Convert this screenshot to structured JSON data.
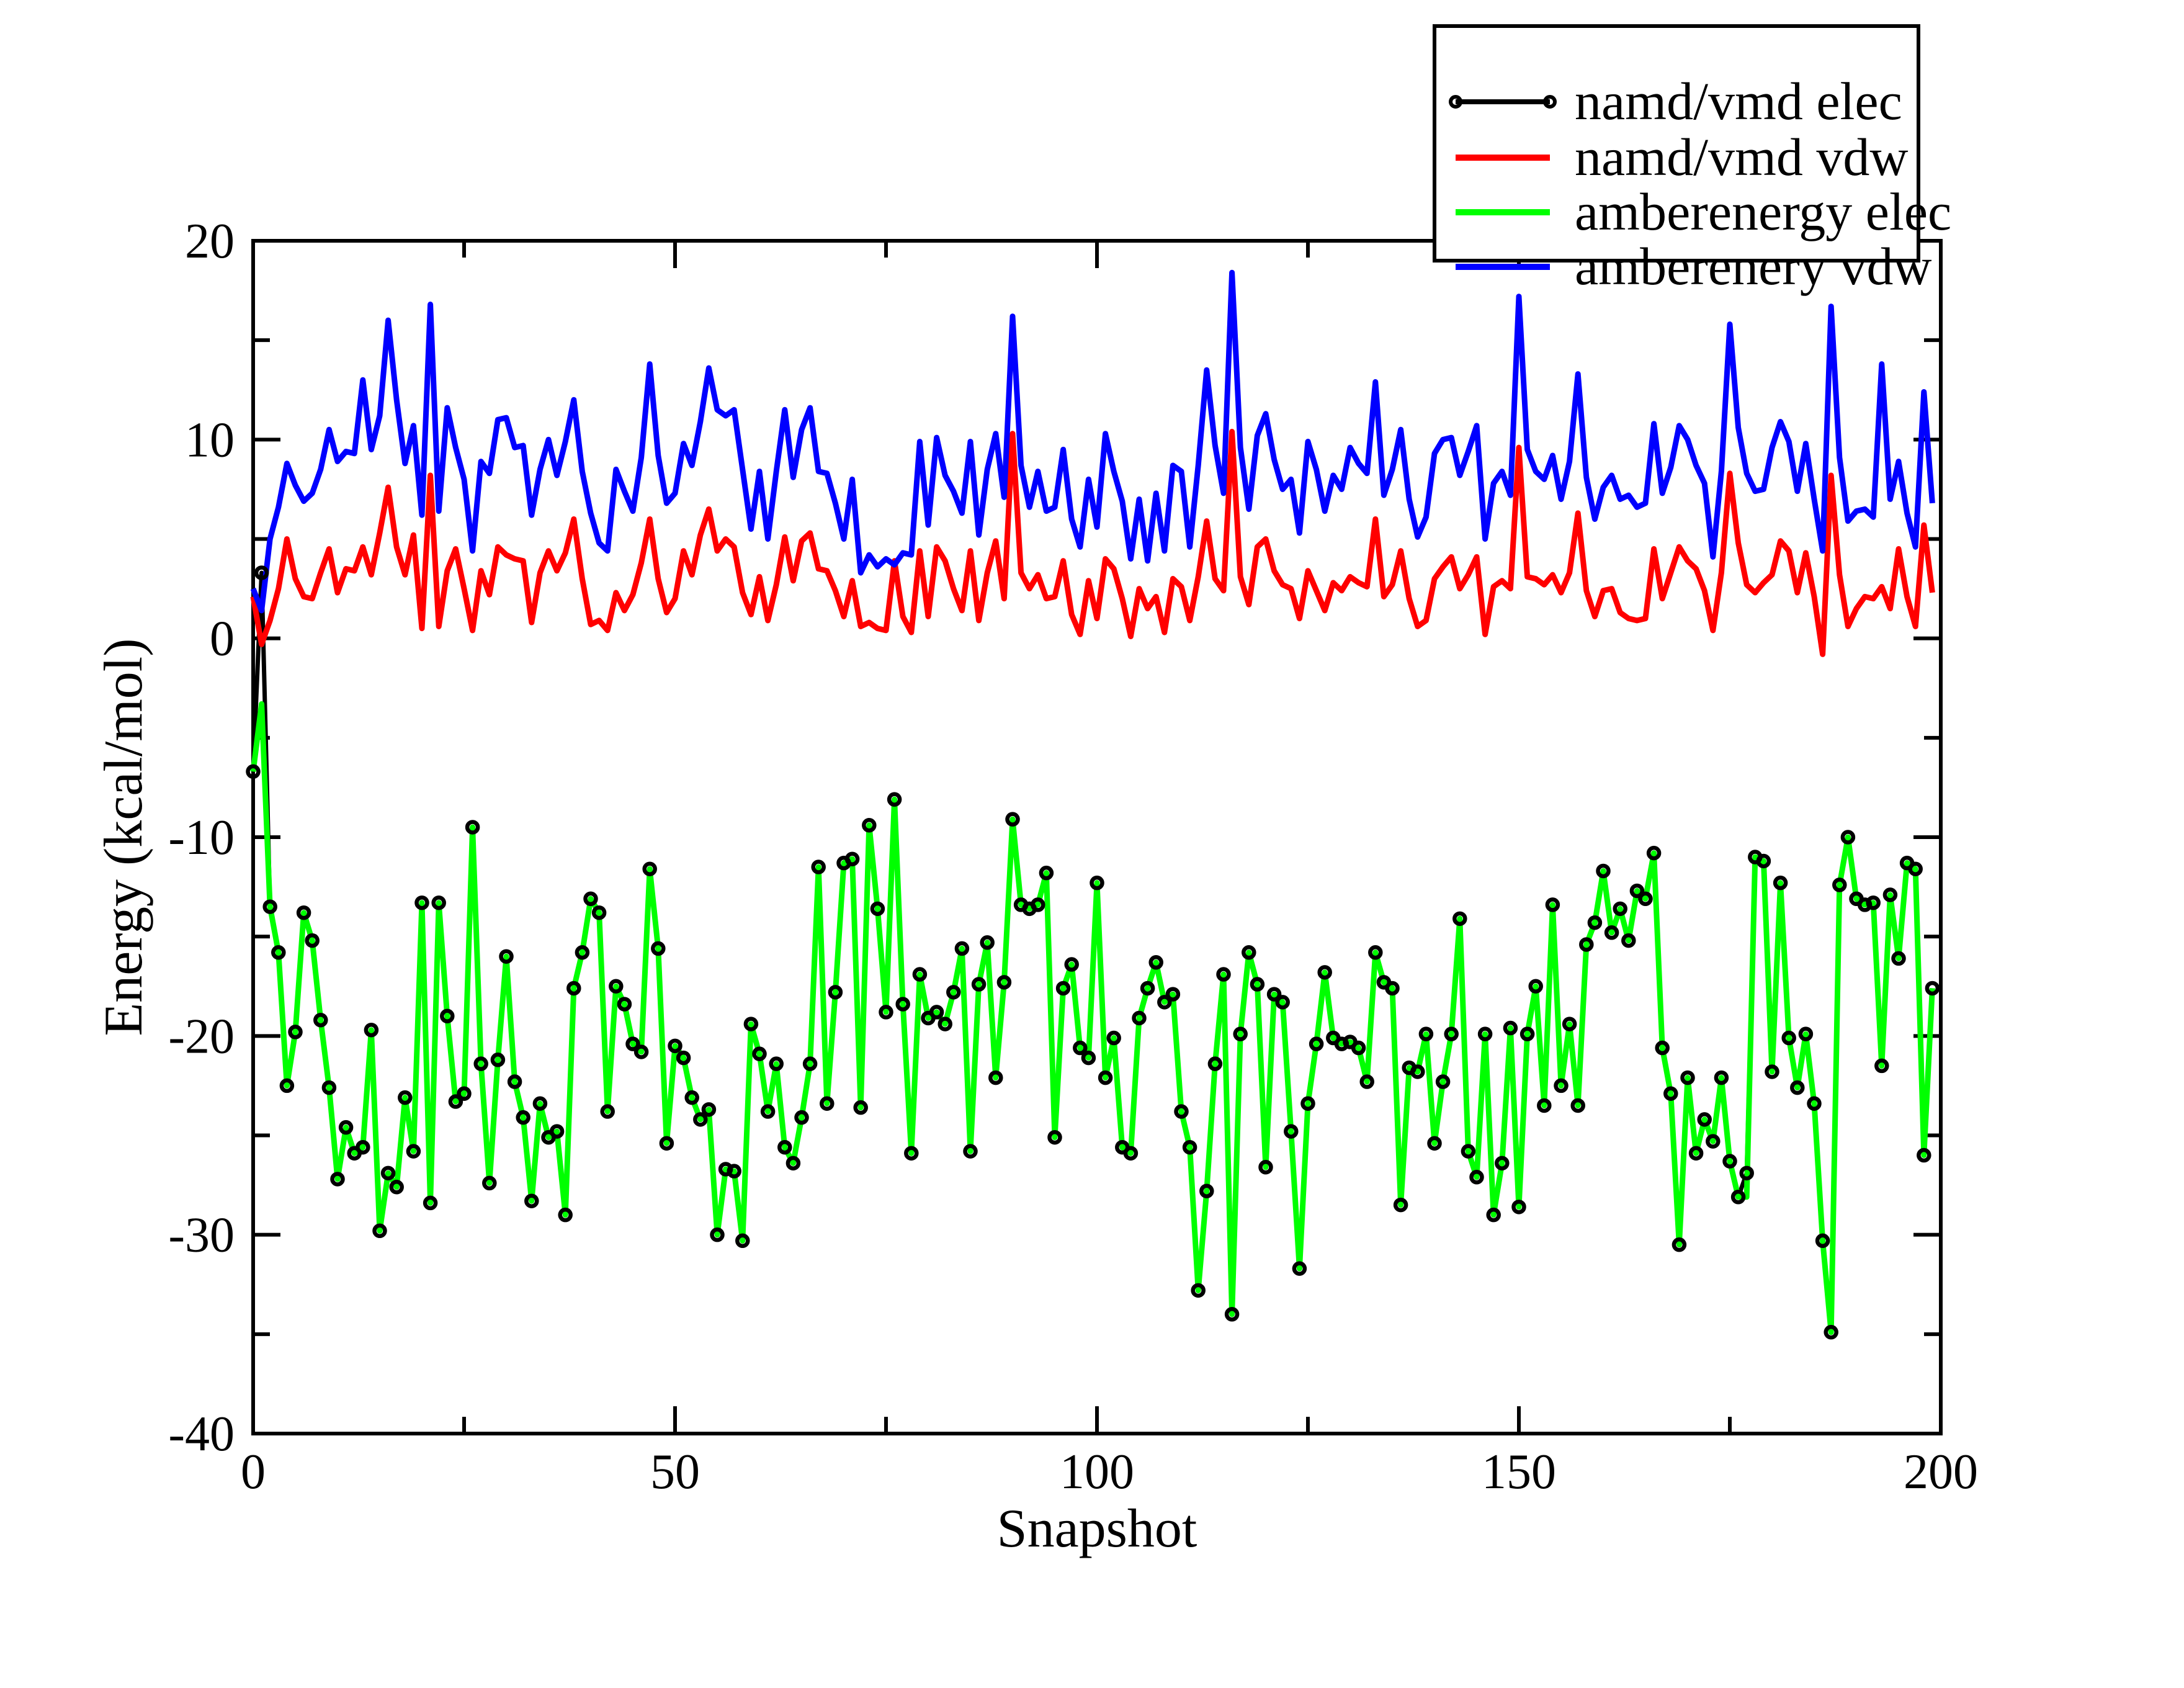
{
  "chart_data": {
    "type": "line",
    "title": "",
    "xlabel": "Snapshot",
    "ylabel": "Energy (kcal/mol)",
    "xlim": [
      0,
      200
    ],
    "ylim": [
      -40,
      20
    ],
    "x_step": 1,
    "grid": false,
    "legend_position": "top-right",
    "x_ticks_major": [
      0,
      50,
      100,
      150,
      200
    ],
    "x_ticks_minor": [
      25,
      75,
      125,
      175
    ],
    "y_ticks_major": [
      -40,
      -30,
      -20,
      -10,
      0,
      10,
      20
    ],
    "y_ticks_minor": [
      -35,
      -25,
      -15,
      -5,
      5,
      15
    ],
    "x_tick_labels": [
      "0",
      "50",
      "100",
      "150",
      "200"
    ],
    "y_tick_labels": [
      "-40",
      "-30",
      "-20",
      "-10",
      "0",
      "10",
      "20"
    ],
    "series": [
      {
        "name": "namd/vmd elec",
        "color": "#000000",
        "marker": "circle",
        "values": [
          -6.7,
          3.3,
          -13.5,
          -15.8,
          -22.5,
          -19.8,
          -13.8,
          -15.2,
          -19.2,
          -22.6,
          -27.2,
          -24.6,
          -25.9,
          -25.6,
          -19.7,
          -29.8,
          -26.9,
          -27.6,
          -23.1,
          -25.8,
          -13.3,
          -28.4,
          -13.3,
          -19.0,
          -23.3,
          -22.9,
          -9.5,
          -21.4,
          -27.4,
          -21.2,
          -16.0,
          -22.3,
          -24.1,
          -28.3,
          -23.4,
          -25.1,
          -24.8,
          -29.0,
          -17.6,
          -15.8,
          -13.1,
          -13.8,
          -23.8,
          -17.5,
          -18.4,
          -20.4,
          -20.8,
          -11.6,
          -15.6,
          -25.4,
          -20.5,
          -21.1,
          -23.1,
          -24.2,
          -23.7,
          -30.0,
          -26.7,
          -26.8,
          -30.3,
          -19.4,
          -20.9,
          -23.8,
          -21.4,
          -25.6,
          -26.4,
          -24.1,
          -21.4,
          -11.5,
          -23.4,
          -17.8,
          -11.3,
          -11.1,
          -23.6,
          -9.4,
          -13.6,
          -18.8,
          -8.1,
          -18.4,
          -25.9,
          -16.9,
          -19.1,
          -18.8,
          -19.4,
          -17.8,
          -15.6,
          -25.8,
          -17.4,
          -15.3,
          -22.1,
          -17.3,
          -9.1,
          -13.4,
          -13.6,
          -13.4,
          -11.8,
          -25.1,
          -17.6,
          -16.4,
          -20.6,
          -21.1,
          -12.3,
          -22.1,
          -20.1,
          -25.6,
          -25.9,
          -19.1,
          -17.6,
          -16.3,
          -18.3,
          -17.9,
          -23.8,
          -25.6,
          -32.8,
          -27.8,
          -21.4,
          -16.9,
          -34.0,
          -19.9,
          -15.8,
          -17.4,
          -26.6,
          -17.9,
          -18.3,
          -24.8,
          -31.7,
          -23.4,
          -20.4,
          -16.8,
          -20.1,
          -20.4,
          -20.3,
          -20.6,
          -22.3,
          -15.8,
          -17.3,
          -17.6,
          -28.5,
          -21.6,
          -21.8,
          -19.9,
          -25.4,
          -22.3,
          -19.9,
          -14.1,
          -25.8,
          -27.1,
          -19.9,
          -29.0,
          -26.4,
          -19.6,
          -28.6,
          -19.9,
          -17.5,
          -23.5,
          -13.4,
          -22.5,
          -19.4,
          -23.5,
          -15.4,
          -14.3,
          -11.7,
          -14.8,
          -13.6,
          -15.2,
          -12.7,
          -13.1,
          -10.8,
          -20.6,
          -22.9,
          -30.5,
          -22.1,
          -25.9,
          -24.2,
          -25.3,
          -22.1,
          -26.3,
          -28.1,
          -26.9,
          -11.0,
          -11.2,
          -21.8,
          -12.3,
          -20.1,
          -22.6,
          -19.9,
          -23.4,
          -30.3,
          -34.9,
          -12.4,
          -10.0,
          -13.1,
          -13.4,
          -13.3,
          -21.5,
          -12.9,
          -16.1,
          -11.3,
          -11.6,
          -26.0,
          -17.6
        ]
      },
      {
        "name": "namd/vmd vdw",
        "color": "#ff0000",
        "marker": null,
        "values": [
          2.1,
          -0.3,
          0.9,
          2.5,
          5.0,
          3.0,
          2.1,
          2.0,
          3.3,
          4.5,
          2.3,
          3.5,
          3.4,
          4.6,
          3.2,
          5.3,
          7.6,
          4.6,
          3.2,
          5.2,
          0.5,
          8.2,
          0.6,
          3.4,
          4.5,
          2.5,
          0.4,
          3.4,
          2.2,
          4.6,
          4.2,
          4.0,
          3.9,
          0.8,
          3.3,
          4.4,
          3.4,
          4.3,
          6.0,
          3.0,
          0.7,
          0.9,
          0.4,
          2.3,
          1.4,
          2.2,
          3.8,
          6.0,
          3.0,
          1.3,
          2.0,
          4.4,
          3.2,
          5.2,
          6.5,
          4.4,
          5.0,
          4.6,
          2.3,
          1.2,
          3.1,
          0.9,
          2.7,
          5.1,
          2.9,
          4.9,
          5.3,
          3.5,
          3.4,
          2.4,
          1.1,
          2.9,
          0.6,
          0.8,
          0.5,
          0.4,
          3.9,
          1.1,
          0.3,
          4.4,
          1.1,
          4.6,
          3.9,
          2.5,
          1.4,
          4.4,
          0.9,
          3.3,
          4.9,
          2.0,
          10.3,
          3.3,
          2.5,
          3.2,
          2.0,
          2.1,
          3.9,
          1.2,
          0.2,
          2.9,
          1.0,
          4.0,
          3.5,
          2.0,
          0.1,
          2.5,
          1.5,
          2.1,
          0.3,
          3.0,
          2.6,
          0.9,
          3.1,
          5.9,
          3.0,
          2.4,
          10.4,
          3.1,
          1.7,
          4.6,
          5.0,
          3.4,
          2.7,
          2.5,
          1.0,
          3.4,
          2.4,
          1.4,
          2.8,
          2.4,
          3.1,
          2.8,
          2.6,
          6.0,
          2.1,
          2.7,
          4.4,
          2.0,
          0.6,
          0.9,
          3.0,
          3.6,
          4.1,
          2.5,
          3.2,
          4.1,
          0.2,
          2.6,
          2.9,
          2.5,
          9.6,
          3.1,
          3.0,
          2.7,
          3.2,
          2.3,
          3.3,
          6.3,
          2.4,
          1.1,
          2.4,
          2.5,
          1.3,
          1.0,
          0.9,
          1.0,
          4.5,
          2.0,
          3.3,
          4.6,
          3.9,
          3.5,
          2.4,
          0.4,
          3.3,
          8.3,
          4.8,
          2.7,
          2.3,
          2.8,
          3.2,
          4.9,
          4.4,
          2.3,
          4.3,
          2.1,
          -0.8,
          8.2,
          3.2,
          0.6,
          1.5,
          2.1,
          2.0,
          2.6,
          1.5,
          4.5,
          2.1,
          0.6,
          5.7,
          2.3
        ]
      },
      {
        "name": "amberenergy elec",
        "color": "#00ff00",
        "marker": null,
        "values": [
          -6.7,
          -3.3,
          -13.5,
          -15.8,
          -22.5,
          -19.8,
          -13.8,
          -15.2,
          -19.2,
          -22.6,
          -27.2,
          -24.6,
          -25.9,
          -25.6,
          -19.7,
          -29.8,
          -26.9,
          -27.6,
          -23.1,
          -25.8,
          -13.3,
          -28.4,
          -13.3,
          -19.0,
          -23.3,
          -22.9,
          -9.5,
          -21.4,
          -27.4,
          -21.2,
          -16.0,
          -22.3,
          -24.1,
          -28.3,
          -23.4,
          -25.1,
          -24.8,
          -29.0,
          -17.6,
          -15.8,
          -13.1,
          -13.8,
          -23.8,
          -17.5,
          -18.4,
          -20.4,
          -20.8,
          -11.6,
          -15.6,
          -25.4,
          -20.5,
          -21.1,
          -23.1,
          -24.2,
          -23.7,
          -30.0,
          -26.7,
          -26.8,
          -30.3,
          -19.4,
          -20.9,
          -23.8,
          -21.4,
          -25.6,
          -26.4,
          -24.1,
          -21.4,
          -11.5,
          -23.4,
          -17.8,
          -11.3,
          -11.1,
          -23.6,
          -9.4,
          -13.6,
          -18.8,
          -8.1,
          -18.4,
          -25.9,
          -16.9,
          -19.1,
          -18.8,
          -19.4,
          -17.8,
          -15.6,
          -25.8,
          -17.4,
          -15.3,
          -22.1,
          -17.3,
          -9.1,
          -13.4,
          -13.6,
          -13.4,
          -11.8,
          -25.1,
          -17.6,
          -16.4,
          -20.6,
          -21.1,
          -12.3,
          -22.1,
          -20.1,
          -25.6,
          -25.9,
          -19.1,
          -17.6,
          -16.3,
          -18.3,
          -17.9,
          -23.8,
          -25.6,
          -32.8,
          -27.8,
          -21.4,
          -16.9,
          -34.0,
          -19.9,
          -15.8,
          -17.4,
          -26.6,
          -17.9,
          -18.3,
          -24.8,
          -31.7,
          -23.4,
          -20.4,
          -16.8,
          -20.1,
          -20.4,
          -20.3,
          -20.6,
          -22.3,
          -15.8,
          -17.3,
          -17.6,
          -28.5,
          -21.6,
          -21.8,
          -19.9,
          -25.4,
          -22.3,
          -19.9,
          -14.1,
          -25.8,
          -27.1,
          -19.9,
          -29.0,
          -26.4,
          -19.6,
          -28.6,
          -19.9,
          -17.5,
          -23.5,
          -13.4,
          -22.5,
          -19.4,
          -23.5,
          -15.4,
          -14.3,
          -11.7,
          -14.8,
          -13.6,
          -15.2,
          -12.7,
          -13.1,
          -10.8,
          -20.6,
          -22.9,
          -30.5,
          -22.1,
          -25.9,
          -24.2,
          -25.3,
          -22.1,
          -26.3,
          -28.1,
          -28.1,
          -11.0,
          -11.2,
          -21.8,
          -12.3,
          -20.1,
          -22.6,
          -19.9,
          -23.4,
          -30.3,
          -34.9,
          -12.4,
          -10.0,
          -13.1,
          -13.4,
          -13.3,
          -21.5,
          -12.9,
          -16.1,
          -11.3,
          -11.6,
          -26.0,
          -17.6
        ]
      },
      {
        "name": "amberenery vdw",
        "color": "#0000ff",
        "marker": null,
        "values": [
          2.5,
          1.4,
          5.0,
          6.6,
          8.8,
          7.7,
          6.9,
          7.3,
          8.5,
          10.5,
          8.9,
          9.4,
          9.3,
          13.0,
          9.5,
          11.2,
          16.0,
          12.0,
          8.8,
          10.7,
          6.2,
          16.8,
          6.4,
          11.6,
          9.6,
          8.0,
          4.4,
          8.9,
          8.3,
          11.0,
          11.1,
          9.6,
          9.7,
          6.2,
          8.5,
          10.0,
          8.2,
          9.9,
          12.0,
          8.4,
          6.3,
          4.8,
          4.4,
          8.5,
          7.4,
          6.4,
          9.1,
          13.8,
          9.2,
          6.8,
          7.3,
          9.8,
          8.7,
          10.9,
          13.6,
          11.5,
          11.2,
          11.5,
          8.5,
          5.5,
          8.4,
          5.0,
          8.4,
          11.5,
          8.1,
          10.5,
          11.6,
          8.4,
          8.3,
          6.8,
          5.0,
          8.0,
          3.3,
          4.2,
          3.6,
          4.0,
          3.7,
          4.3,
          4.2,
          9.9,
          5.7,
          10.1,
          8.2,
          7.4,
          6.3,
          9.9,
          5.2,
          8.5,
          10.3,
          7.1,
          16.2,
          8.7,
          6.6,
          8.4,
          6.4,
          6.6,
          9.5,
          6.0,
          4.6,
          8.0,
          5.6,
          10.3,
          8.4,
          6.9,
          4.0,
          7.0,
          3.9,
          7.3,
          4.4,
          8.7,
          8.4,
          4.6,
          8.7,
          13.5,
          9.7,
          7.3,
          18.4,
          9.6,
          6.5,
          10.2,
          11.3,
          9.0,
          7.5,
          8.0,
          5.3,
          9.9,
          8.5,
          6.4,
          8.2,
          7.5,
          9.6,
          8.8,
          8.3,
          12.9,
          7.2,
          8.5,
          10.5,
          7.0,
          5.1,
          6.1,
          9.3,
          10.0,
          10.1,
          8.2,
          9.4,
          10.7,
          5.0,
          7.8,
          8.4,
          7.2,
          17.2,
          9.5,
          8.4,
          8.0,
          9.2,
          7.0,
          8.9,
          13.3,
          8.1,
          6.0,
          7.6,
          8.2,
          7.0,
          7.2,
          6.6,
          6.8,
          10.8,
          7.3,
          8.6,
          10.7,
          10.0,
          8.7,
          7.8,
          4.1,
          8.4,
          15.8,
          10.6,
          8.3,
          7.4,
          7.5,
          9.6,
          10.9,
          9.9,
          7.4,
          9.8,
          7.0,
          4.4,
          16.7,
          9.1,
          5.9,
          6.4,
          6.5,
          6.1,
          13.8,
          7.0,
          8.9,
          6.3,
          4.6,
          12.4,
          6.8
        ]
      }
    ],
    "legend_entries": [
      "namd/vmd elec",
      "namd/vmd vdw",
      "amberenergy elec",
      "amberenery vdw"
    ]
  },
  "colors": {
    "background": "#ffffff",
    "frame": "#000000",
    "namd_elec": "#000000",
    "namd_vdw": "#ff0000",
    "amber_elec": "#00ff00",
    "amber_vdw": "#0000ff"
  }
}
